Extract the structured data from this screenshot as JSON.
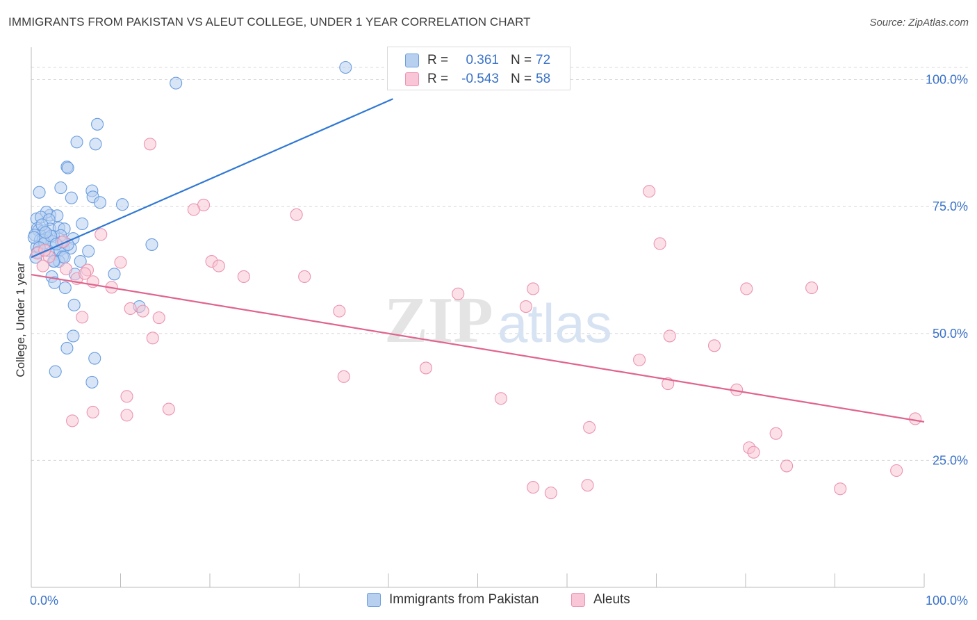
{
  "title": "IMMIGRANTS FROM PAKISTAN VS ALEUT COLLEGE, UNDER 1 YEAR CORRELATION CHART",
  "source": "Source: ZipAtlas.com",
  "watermark": {
    "zip": "ZIP",
    "atlas": "atlas"
  },
  "legend_box": {
    "rows": [
      {
        "r_label": "R =",
        "r_value": "0.361",
        "n_label": "N =",
        "n_value": "72"
      },
      {
        "r_label": "R =",
        "r_value": "-0.543",
        "n_label": "N =",
        "n_value": "58"
      }
    ]
  },
  "colors": {
    "blue_fill": "#b8d0f0",
    "blue_stroke": "#6a9de0",
    "blue_line": "#2f78d4",
    "pink_fill": "#f8c6d6",
    "pink_stroke": "#ec93b0",
    "pink_line": "#e0648e",
    "tick_label": "#3a72c8",
    "grid": "#d8d8d8"
  },
  "chart_data": {
    "type": "scatter",
    "title": "IMMIGRANTS FROM PAKISTAN VS ALEUT COLLEGE, UNDER 1 YEAR CORRELATION CHART",
    "xlabel": "",
    "ylabel": "College, Under 1 year",
    "xlim": [
      0,
      100
    ],
    "ylim": [
      0,
      105
    ],
    "x_tick_labels": [
      "0.0%",
      "100.0%"
    ],
    "y_ticks": [
      25,
      50,
      75,
      100
    ],
    "y_tick_labels": [
      "25.0%",
      "50.0%",
      "75.0%",
      "100.0%"
    ],
    "grid": true,
    "legend_placement": "bottom",
    "series": [
      {
        "name": "Immigrants from Pakistan",
        "color": "#6a9de0",
        "r": 0.361,
        "n": 72,
        "trend": {
          "x": [
            0,
            40.5
          ],
          "y": [
            65.0,
            96.2
          ]
        },
        "points": [
          [
            35.2,
            102.4
          ],
          [
            16.2,
            99.3
          ],
          [
            7.4,
            91.2
          ],
          [
            5.1,
            87.7
          ],
          [
            7.2,
            87.3
          ],
          [
            4.0,
            82.8
          ],
          [
            4.1,
            82.6
          ],
          [
            3.3,
            78.7
          ],
          [
            0.9,
            77.8
          ],
          [
            6.8,
            78.1
          ],
          [
            4.5,
            76.7
          ],
          [
            6.9,
            76.9
          ],
          [
            7.7,
            75.8
          ],
          [
            10.2,
            75.4
          ],
          [
            2.1,
            73.3
          ],
          [
            1.7,
            73.9
          ],
          [
            2.9,
            73.2
          ],
          [
            0.6,
            72.6
          ],
          [
            1.1,
            72.9
          ],
          [
            2.0,
            72.4
          ],
          [
            5.7,
            71.6
          ],
          [
            0.7,
            70.7
          ],
          [
            2.1,
            70.6
          ],
          [
            3.1,
            70.8
          ],
          [
            3.7,
            70.6
          ],
          [
            0.8,
            70.3
          ],
          [
            1.4,
            70.2
          ],
          [
            0.4,
            69.4
          ],
          [
            2.5,
            69.1
          ],
          [
            1.8,
            68.8
          ],
          [
            3.3,
            69.3
          ],
          [
            1.0,
            68.4
          ],
          [
            2.4,
            68.1
          ],
          [
            1.3,
            68.4
          ],
          [
            4.7,
            68.7
          ],
          [
            13.5,
            67.5
          ],
          [
            0.6,
            67.0
          ],
          [
            3.6,
            66.8
          ],
          [
            2.7,
            65.6
          ],
          [
            3.2,
            66.4
          ],
          [
            4.4,
            66.8
          ],
          [
            0.7,
            66.0
          ],
          [
            0.5,
            65.0
          ],
          [
            1.9,
            66.3
          ],
          [
            3.5,
            65.1
          ],
          [
            2.6,
            64.2
          ],
          [
            3.1,
            64.2
          ],
          [
            5.5,
            64.2
          ],
          [
            6.4,
            66.2
          ],
          [
            3.7,
            65.0
          ],
          [
            2.5,
            64.2
          ],
          [
            4.9,
            61.7
          ],
          [
            2.3,
            61.2
          ],
          [
            9.3,
            61.7
          ],
          [
            2.6,
            60.0
          ],
          [
            3.8,
            59.0
          ],
          [
            4.8,
            55.6
          ],
          [
            12.1,
            55.3
          ],
          [
            4.7,
            49.5
          ],
          [
            4.0,
            47.1
          ],
          [
            7.1,
            45.1
          ],
          [
            2.7,
            42.5
          ],
          [
            6.8,
            40.4
          ],
          [
            1.5,
            67.8
          ],
          [
            0.3,
            68.9
          ],
          [
            1.2,
            71.4
          ],
          [
            2.2,
            69.2
          ],
          [
            0.9,
            66.9
          ],
          [
            4.1,
            67.5
          ],
          [
            3.4,
            68.0
          ],
          [
            2.8,
            67.6
          ],
          [
            1.6,
            69.9
          ]
        ]
      },
      {
        "name": "Aleuts",
        "color": "#ec93b0",
        "r": -0.543,
        "n": 58,
        "trend": {
          "x": [
            0,
            100
          ],
          "y": [
            61.6,
            32.6
          ]
        },
        "points": [
          [
            13.3,
            87.3
          ],
          [
            69.2,
            78.0
          ],
          [
            19.3,
            75.3
          ],
          [
            18.2,
            74.4
          ],
          [
            29.7,
            73.4
          ],
          [
            7.8,
            69.5
          ],
          [
            70.4,
            67.7
          ],
          [
            3.6,
            68.1
          ],
          [
            0.7,
            65.8
          ],
          [
            2.0,
            65.1
          ],
          [
            10.0,
            64.0
          ],
          [
            20.2,
            64.2
          ],
          [
            21.0,
            63.3
          ],
          [
            6.3,
            62.5
          ],
          [
            1.3,
            63.3
          ],
          [
            23.8,
            61.2
          ],
          [
            30.6,
            61.2
          ],
          [
            5.1,
            60.8
          ],
          [
            9.0,
            59.1
          ],
          [
            6.9,
            60.2
          ],
          [
            56.2,
            58.8
          ],
          [
            80.1,
            58.8
          ],
          [
            87.4,
            59.0
          ],
          [
            47.8,
            57.8
          ],
          [
            55.4,
            55.3
          ],
          [
            11.1,
            54.9
          ],
          [
            34.5,
            54.4
          ],
          [
            5.7,
            53.2
          ],
          [
            14.3,
            53.1
          ],
          [
            71.5,
            49.5
          ],
          [
            13.6,
            49.1
          ],
          [
            76.5,
            47.6
          ],
          [
            68.1,
            44.8
          ],
          [
            44.2,
            43.2
          ],
          [
            35.0,
            41.5
          ],
          [
            71.3,
            40.1
          ],
          [
            79.0,
            38.9
          ],
          [
            10.7,
            37.6
          ],
          [
            52.6,
            37.2
          ],
          [
            15.4,
            35.1
          ],
          [
            6.9,
            34.5
          ],
          [
            10.7,
            33.9
          ],
          [
            4.6,
            32.8
          ],
          [
            99.0,
            33.2
          ],
          [
            62.5,
            31.5
          ],
          [
            83.4,
            30.3
          ],
          [
            80.4,
            27.5
          ],
          [
            80.9,
            26.6
          ],
          [
            84.6,
            23.9
          ],
          [
            96.9,
            23.0
          ],
          [
            56.2,
            19.7
          ],
          [
            62.3,
            20.1
          ],
          [
            90.6,
            19.4
          ],
          [
            58.2,
            18.6
          ],
          [
            3.9,
            62.7
          ],
          [
            1.5,
            66.4
          ],
          [
            12.5,
            54.4
          ],
          [
            6.0,
            61.8
          ]
        ]
      }
    ]
  }
}
